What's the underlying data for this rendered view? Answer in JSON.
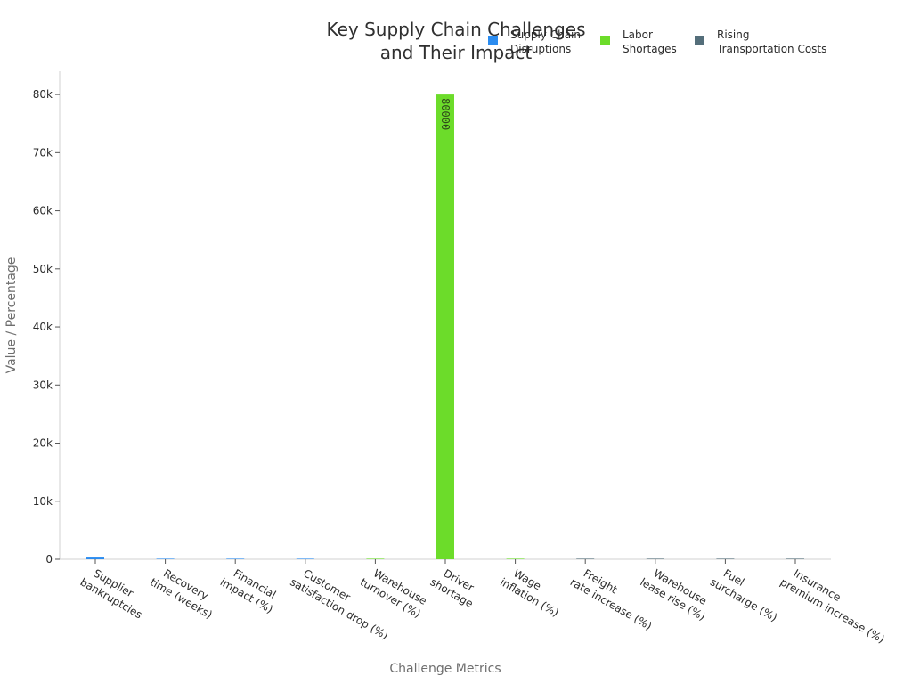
{
  "chart_data": {
    "type": "bar",
    "title": [
      "Key Supply Chain Challenges",
      "and Their Impact"
    ],
    "xlabel": "Challenge Metrics",
    "ylabel": "Value / Percentage",
    "ylim": [
      0,
      84000
    ],
    "yticks": [
      0,
      10000,
      20000,
      30000,
      40000,
      50000,
      60000,
      70000,
      80000
    ],
    "ytick_labels": [
      "0",
      "10k",
      "20k",
      "30k",
      "40k",
      "50k",
      "60k",
      "70k",
      "80k"
    ],
    "grid": false,
    "legend_position": "top-right",
    "categories": [
      [
        "Supplier",
        "bankruptcies"
      ],
      [
        "Recovery",
        "time (weeks)"
      ],
      [
        "Financial",
        "impact (%)"
      ],
      [
        "Customer",
        "satisfaction drop (%)"
      ],
      [
        "Warehouse",
        "turnover (%)"
      ],
      [
        "Driver",
        "shortage"
      ],
      [
        "Wage",
        "inflation (%)"
      ],
      [
        "Freight",
        "rate increase (%)"
      ],
      [
        "Warehouse",
        "lease rise (%)"
      ],
      [
        "Fuel",
        "surcharge (%)"
      ],
      [
        "Insurance",
        "premium increase (%)"
      ]
    ],
    "series": [
      {
        "name": [
          "Supply Chain",
          "Disruptions"
        ],
        "color": "#2b8cf0",
        "values": [
          450,
          12,
          45,
          15,
          null,
          null,
          null,
          null,
          null,
          null,
          null
        ]
      },
      {
        "name": [
          "Labor",
          "Shortages"
        ],
        "color": "#6cdc2a",
        "values": [
          null,
          null,
          null,
          null,
          40,
          80000,
          18,
          null,
          null,
          null,
          null
        ]
      },
      {
        "name": [
          "Rising",
          "Transportation Costs"
        ],
        "color": "#546e7a",
        "values": [
          null,
          null,
          null,
          null,
          null,
          null,
          null,
          30,
          20,
          25,
          15
        ]
      }
    ],
    "data_labels": [
      {
        "series": 1,
        "category": 5,
        "text": "80000"
      }
    ]
  }
}
